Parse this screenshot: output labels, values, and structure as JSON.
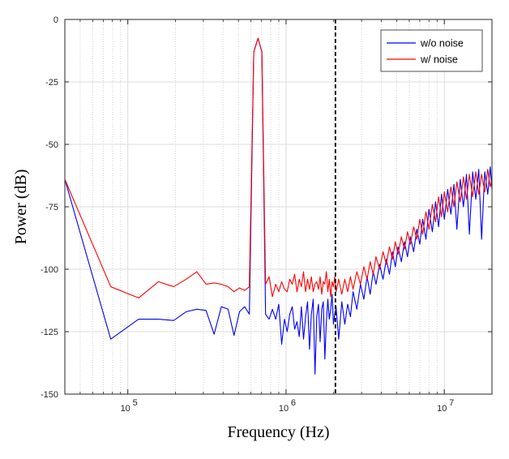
{
  "chart_data": {
    "type": "line",
    "title": "",
    "xlabel": "Frequency (Hz)",
    "ylabel": "Power (dB)",
    "xscale": "log",
    "xlim": [
      40000,
      20000000
    ],
    "ylim": [
      -150,
      0
    ],
    "grid": true,
    "legend_position": "top-right",
    "x_ticks": [
      100000,
      1000000,
      10000000
    ],
    "x_tick_labels": [
      {
        "base": "10",
        "exp": "5"
      },
      {
        "base": "10",
        "exp": "6"
      },
      {
        "base": "10",
        "exp": "7"
      }
    ],
    "y_ticks": [
      0,
      -25,
      -50,
      -75,
      -100,
      -125,
      -150
    ],
    "y_tick_labels": [
      "0",
      "-25",
      "-50",
      "-75",
      "-100",
      "-125",
      "-150"
    ],
    "reference_line": {
      "x": 2050000,
      "style": "dashed",
      "color": "#000000"
    },
    "series": [
      {
        "name": "w/o noise",
        "color": "#0000ff",
        "points": [
          [
            40000,
            -64
          ],
          [
            78000,
            -128
          ],
          [
            117000,
            -120
          ],
          [
            156000,
            -120
          ],
          [
            195000,
            -120.5
          ],
          [
            234000,
            -117
          ],
          [
            273000,
            -116
          ],
          [
            312000,
            -116.5
          ],
          [
            351000,
            -126
          ],
          [
            390000,
            -115
          ],
          [
            430000,
            -116
          ],
          [
            469000,
            -126.5
          ],
          [
            508000,
            -117
          ],
          [
            547000,
            -115
          ],
          [
            586000,
            -118
          ],
          [
            625000,
            -13
          ],
          [
            665000,
            -7.5
          ],
          [
            703000,
            -13
          ],
          [
            742000,
            -118
          ],
          [
            781000,
            -120
          ],
          [
            820000,
            -116
          ],
          [
            860000,
            -120
          ],
          [
            899000,
            -114
          ],
          [
            938000,
            -130
          ],
          [
            977000,
            -120
          ],
          [
            1016000,
            -125
          ],
          [
            1055000,
            -118
          ],
          [
            1094000,
            -115
          ],
          [
            1133000,
            -124
          ],
          [
            1172000,
            -121
          ],
          [
            1211000,
            -127
          ],
          [
            1250000,
            -115
          ],
          [
            1289000,
            -128
          ],
          [
            1328000,
            -119
          ],
          [
            1367000,
            -113
          ],
          [
            1406000,
            -132
          ],
          [
            1445000,
            -118
          ],
          [
            1484000,
            -112
          ],
          [
            1523000,
            -142
          ],
          [
            1563000,
            -119
          ],
          [
            1602000,
            -114
          ],
          [
            1641000,
            -129
          ],
          [
            1680000,
            -116
          ],
          [
            1719000,
            -113
          ],
          [
            1758000,
            -136
          ],
          [
            1797000,
            -121
          ],
          [
            1836000,
            -112
          ],
          [
            1875000,
            -120
          ],
          [
            1914000,
            -116
          ],
          [
            1953000,
            -110
          ],
          [
            1992000,
            -122
          ],
          [
            2031000,
            -118
          ],
          [
            2070000,
            -115
          ],
          [
            2150000,
            -128
          ],
          [
            2250000,
            -113
          ],
          [
            2350000,
            -122
          ],
          [
            2450000,
            -114
          ],
          [
            2550000,
            -119
          ],
          [
            2650000,
            -109
          ],
          [
            2800000,
            -116
          ],
          [
            2950000,
            -106
          ],
          [
            3100000,
            -112
          ],
          [
            3250000,
            -103
          ],
          [
            3400000,
            -110
          ],
          [
            3550000,
            -101
          ],
          [
            3700000,
            -106
          ],
          [
            3900000,
            -98
          ],
          [
            4100000,
            -104
          ],
          [
            4300000,
            -96
          ],
          [
            4500000,
            -102
          ],
          [
            4700000,
            -93
          ],
          [
            4900000,
            -99
          ],
          [
            5100000,
            -91
          ],
          [
            5350000,
            -97
          ],
          [
            5600000,
            -89
          ],
          [
            5850000,
            -95
          ],
          [
            6100000,
            -87
          ],
          [
            6400000,
            -93
          ],
          [
            6700000,
            -84
          ],
          [
            7000000,
            -90
          ],
          [
            7300000,
            -80
          ],
          [
            7650000,
            -88
          ],
          [
            8000000,
            -76
          ],
          [
            8400000,
            -85
          ],
          [
            8800000,
            -73
          ],
          [
            9200000,
            -83
          ],
          [
            9600000,
            -70
          ],
          [
            10000000,
            -80
          ],
          [
            10500000,
            -68
          ],
          [
            11000000,
            -78
          ],
          [
            11500000,
            -66
          ],
          [
            12000000,
            -84
          ],
          [
            12600000,
            -64
          ],
          [
            13200000,
            -75
          ],
          [
            13800000,
            -62
          ],
          [
            14400000,
            -86
          ],
          [
            15100000,
            -61
          ],
          [
            15800000,
            -72
          ],
          [
            16500000,
            -60
          ],
          [
            17200000,
            -88
          ],
          [
            18000000,
            -61
          ],
          [
            18800000,
            -70
          ],
          [
            19500000,
            -59
          ],
          [
            20000000,
            -68
          ]
        ]
      },
      {
        "name": "w/ noise",
        "color": "#ff0000",
        "points": [
          [
            40000,
            -64
          ],
          [
            78000,
            -107
          ],
          [
            117000,
            -111.5
          ],
          [
            156000,
            -105
          ],
          [
            195000,
            -107
          ],
          [
            234000,
            -104
          ],
          [
            273000,
            -101
          ],
          [
            312000,
            -106
          ],
          [
            351000,
            -105.5
          ],
          [
            390000,
            -106
          ],
          [
            430000,
            -107
          ],
          [
            469000,
            -109
          ],
          [
            508000,
            -107.5
          ],
          [
            547000,
            -108.5
          ],
          [
            586000,
            -107
          ],
          [
            625000,
            -13
          ],
          [
            665000,
            -7.5
          ],
          [
            703000,
            -13
          ],
          [
            742000,
            -106
          ],
          [
            781000,
            -103
          ],
          [
            820000,
            -111
          ],
          [
            860000,
            -106
          ],
          [
            899000,
            -109
          ],
          [
            938000,
            -105
          ],
          [
            977000,
            -108
          ],
          [
            1016000,
            -109
          ],
          [
            1055000,
            -104
          ],
          [
            1094000,
            -106
          ],
          [
            1133000,
            -102
          ],
          [
            1172000,
            -109
          ],
          [
            1211000,
            -104
          ],
          [
            1250000,
            -107
          ],
          [
            1289000,
            -101
          ],
          [
            1328000,
            -109
          ],
          [
            1367000,
            -104
          ],
          [
            1406000,
            -108
          ],
          [
            1445000,
            -103
          ],
          [
            1484000,
            -109
          ],
          [
            1523000,
            -106
          ],
          [
            1563000,
            -105
          ],
          [
            1602000,
            -108
          ],
          [
            1641000,
            -103
          ],
          [
            1680000,
            -110
          ],
          [
            1719000,
            -105
          ],
          [
            1758000,
            -106
          ],
          [
            1797000,
            -101
          ],
          [
            1836000,
            -109
          ],
          [
            1875000,
            -104
          ],
          [
            1914000,
            -111
          ],
          [
            1953000,
            -105
          ],
          [
            1992000,
            -107
          ],
          [
            2031000,
            -103
          ],
          [
            2070000,
            -109
          ],
          [
            2150000,
            -104
          ],
          [
            2250000,
            -110
          ],
          [
            2350000,
            -104
          ],
          [
            2450000,
            -109
          ],
          [
            2550000,
            -103
          ],
          [
            2650000,
            -108
          ],
          [
            2800000,
            -101
          ],
          [
            2950000,
            -106
          ],
          [
            3100000,
            -99
          ],
          [
            3250000,
            -104
          ],
          [
            3400000,
            -97
          ],
          [
            3550000,
            -102
          ],
          [
            3700000,
            -95
          ],
          [
            3900000,
            -100
          ],
          [
            4100000,
            -93
          ],
          [
            4300000,
            -98
          ],
          [
            4500000,
            -91
          ],
          [
            4700000,
            -96
          ],
          [
            4900000,
            -89
          ],
          [
            5100000,
            -94
          ],
          [
            5350000,
            -87
          ],
          [
            5600000,
            -92
          ],
          [
            5850000,
            -85
          ],
          [
            6100000,
            -90
          ],
          [
            6400000,
            -83
          ],
          [
            6700000,
            -88
          ],
          [
            7000000,
            -80
          ],
          [
            7300000,
            -86
          ],
          [
            7650000,
            -77
          ],
          [
            8000000,
            -84
          ],
          [
            8400000,
            -74
          ],
          [
            8800000,
            -81
          ],
          [
            9200000,
            -71
          ],
          [
            9600000,
            -79
          ],
          [
            10000000,
            -69
          ],
          [
            10500000,
            -77
          ],
          [
            11000000,
            -67
          ],
          [
            11500000,
            -75
          ],
          [
            12000000,
            -65
          ],
          [
            12600000,
            -73
          ],
          [
            13200000,
            -63
          ],
          [
            13800000,
            -72
          ],
          [
            14400000,
            -62
          ],
          [
            15100000,
            -71
          ],
          [
            15800000,
            -61
          ],
          [
            16500000,
            -70
          ],
          [
            17200000,
            -62
          ],
          [
            18000000,
            -69
          ],
          [
            18800000,
            -60
          ],
          [
            19500000,
            -67
          ],
          [
            20000000,
            -64
          ]
        ]
      }
    ]
  }
}
